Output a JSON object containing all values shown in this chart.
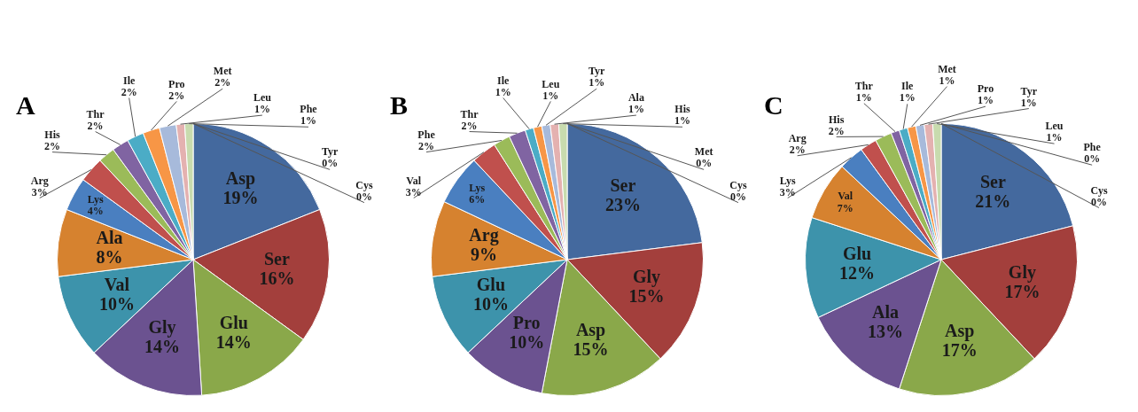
{
  "chart_data": [
    {
      "type": "pie",
      "title": "A",
      "legend": false,
      "categories": [
        "Asp",
        "Ser",
        "Glu",
        "Gly",
        "Val",
        "Ala",
        "Lys",
        "Arg",
        "His",
        "Thr",
        "Ile",
        "Pro",
        "Met",
        "Leu",
        "Phe",
        "Tyr",
        "Cys"
      ],
      "values": [
        19,
        16,
        14,
        14,
        10,
        8,
        4,
        3,
        2,
        2,
        2,
        2,
        2,
        1,
        1,
        0,
        0
      ],
      "value_labels": [
        "19%",
        "16%",
        "14%",
        "14%",
        "10%",
        "8%",
        "4%",
        "3%",
        "2%",
        "2%",
        "2%",
        "2%",
        "2%",
        "1%",
        "1%",
        "0%",
        "0%"
      ],
      "colors": [
        "#44699e",
        "#a33f3c",
        "#8aa84a",
        "#6b5290",
        "#3d93ab",
        "#d6822f",
        "#4a7fc0",
        "#c0504d",
        "#9bbb59",
        "#8064a2",
        "#4bacc6",
        "#f79646",
        "#a7badb",
        "#e4b1b0",
        "#c8dbae",
        "#b7aecf",
        "#b2d6e2"
      ]
    },
    {
      "type": "pie",
      "title": "B",
      "legend": false,
      "categories": [
        "Ser",
        "Gly",
        "Asp",
        "Pro",
        "Glu",
        "Arg",
        "Lys",
        "Val",
        "Phe",
        "Thr",
        "Ile",
        "Leu",
        "Tyr",
        "Ala",
        "His",
        "Met",
        "Cys"
      ],
      "values": [
        23,
        15,
        15,
        10,
        10,
        9,
        6,
        3,
        2,
        2,
        1,
        1,
        1,
        1,
        1,
        0,
        0
      ],
      "value_labels": [
        "23%",
        "15%",
        "15%",
        "10%",
        "10%",
        "9%",
        "6%",
        "3%",
        "2%",
        "2%",
        "1%",
        "1%",
        "1%",
        "1%",
        "1%",
        "0%",
        "0%"
      ],
      "colors": [
        "#44699e",
        "#a33f3c",
        "#8aa84a",
        "#6b5290",
        "#3d93ab",
        "#d6822f",
        "#4a7fc0",
        "#c0504d",
        "#9bbb59",
        "#8064a2",
        "#4bacc6",
        "#f79646",
        "#a7badb",
        "#e4b1b0",
        "#c8dbae",
        "#b7aecf",
        "#b2d6e2"
      ]
    },
    {
      "type": "pie",
      "title": "C",
      "legend": false,
      "categories": [
        "Ser",
        "Gly",
        "Asp",
        "Ala",
        "Glu",
        "Val",
        "Lys",
        "Arg",
        "His",
        "Thr",
        "Ile",
        "Met",
        "Pro",
        "Tyr",
        "Leu",
        "Phe",
        "Cys"
      ],
      "values": [
        21,
        17,
        17,
        13,
        12,
        7,
        3,
        2,
        2,
        1,
        1,
        1,
        1,
        1,
        1,
        0,
        0
      ],
      "value_labels": [
        "21%",
        "17%",
        "17%",
        "13%",
        "12%",
        "7%",
        "3%",
        "2%",
        "2%",
        "1%",
        "1%",
        "1%",
        "1%",
        "1%",
        "1%",
        "0%",
        "0%"
      ],
      "colors": [
        "#44699e",
        "#a33f3c",
        "#8aa84a",
        "#6b5290",
        "#3d93ab",
        "#d6822f",
        "#4a7fc0",
        "#c0504d",
        "#9bbb59",
        "#8064a2",
        "#4bacc6",
        "#f79646",
        "#a7badb",
        "#e4b1b0",
        "#c8dbae",
        "#b7aecf",
        "#b2d6e2"
      ]
    }
  ]
}
